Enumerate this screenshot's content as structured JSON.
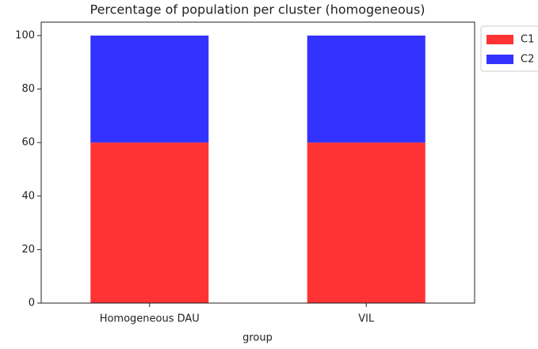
{
  "chart_data": {
    "type": "stacked_bar",
    "title": "Percentage of population per cluster (homogeneous)",
    "x_label": "group",
    "categories": [
      "Homogeneous DAU",
      "VIL"
    ],
    "series": [
      {
        "name": "C1",
        "color": "#ff3333",
        "values": [
          60,
          60
        ]
      },
      {
        "name": "C2",
        "color": "#3333ff",
        "values": [
          40,
          40
        ]
      }
    ],
    "ylim": [
      0,
      105
    ],
    "yticks": [
      0,
      20,
      40,
      60,
      80,
      100
    ],
    "legend": "outside upper right"
  }
}
